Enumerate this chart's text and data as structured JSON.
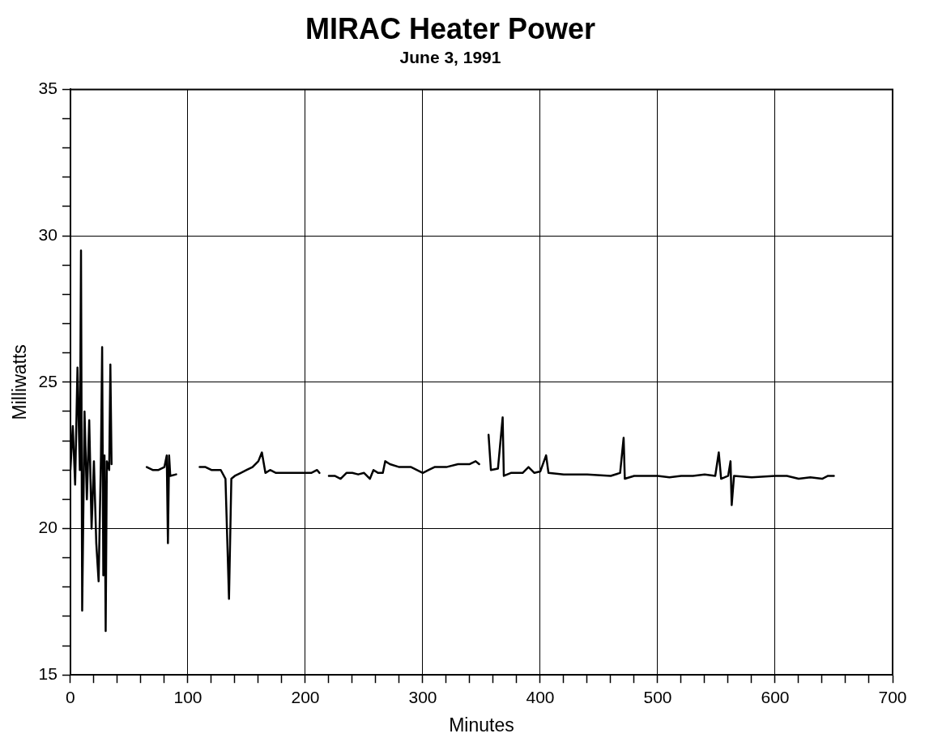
{
  "chart_data": {
    "type": "line",
    "title": "MIRAC Heater Power",
    "subtitle": "June 3, 1991",
    "xlabel": "Minutes",
    "ylabel": "Milliwatts",
    "xlim": [
      0,
      700
    ],
    "ylim": [
      15,
      35
    ],
    "xticks": [
      0,
      {
        "value": 20,
        "label": null
      },
      {
        "value": 40,
        "label": null
      },
      {
        "value": 60,
        "label": null
      },
      {
        "value": 80,
        "label": null
      },
      100,
      {
        "value": 120,
        "label": null
      },
      {
        "value": 140,
        "label": null
      },
      {
        "value": 160,
        "label": null
      },
      {
        "value": 180,
        "label": null
      },
      200,
      {
        "value": 220,
        "label": null
      },
      {
        "value": 240,
        "label": null
      },
      {
        "value": 260,
        "label": null
      },
      {
        "value": 280,
        "label": null
      },
      300,
      {
        "value": 320,
        "label": null
      },
      {
        "value": 340,
        "label": null
      },
      {
        "value": 360,
        "label": null
      },
      {
        "value": 380,
        "label": null
      },
      400,
      {
        "value": 420,
        "label": null
      },
      {
        "value": 440,
        "label": null
      },
      {
        "value": 460,
        "label": null
      },
      {
        "value": 480,
        "label": null
      },
      500,
      {
        "value": 520,
        "label": null
      },
      {
        "value": 540,
        "label": null
      },
      {
        "value": 560,
        "label": null
      },
      {
        "value": 580,
        "label": null
      },
      600,
      {
        "value": 620,
        "label": null
      },
      {
        "value": 640,
        "label": null
      },
      {
        "value": 660,
        "label": null
      },
      {
        "value": 680,
        "label": null
      },
      700
    ],
    "yticks": [
      15,
      {
        "value": 16,
        "label": null
      },
      {
        "value": 17,
        "label": null
      },
      {
        "value": 18,
        "label": null
      },
      {
        "value": 19,
        "label": null
      },
      20,
      {
        "value": 21,
        "label": null
      },
      {
        "value": 22,
        "label": null
      },
      {
        "value": 23,
        "label": null
      },
      {
        "value": 24,
        "label": null
      },
      25,
      {
        "value": 26,
        "label": null
      },
      {
        "value": 27,
        "label": null
      },
      {
        "value": 28,
        "label": null
      },
      {
        "value": 29,
        "label": null
      },
      30,
      {
        "value": 31,
        "label": null
      },
      {
        "value": 32,
        "label": null
      },
      {
        "value": 33,
        "label": null
      },
      {
        "value": 34,
        "label": null
      },
      35
    ],
    "grid": true,
    "legend": false,
    "marker": "none",
    "line_style": "solid",
    "x": [
      0,
      2,
      4,
      6,
      8,
      9,
      10,
      12,
      14,
      16,
      18,
      20,
      22,
      24,
      26,
      27,
      28,
      29,
      30,
      31,
      33,
      34,
      35,
      50,
      65,
      70,
      75,
      80,
      82,
      83,
      84,
      85,
      90,
      100,
      110,
      115,
      120,
      128,
      132,
      135,
      137,
      140,
      145,
      150,
      155,
      160,
      163,
      166,
      170,
      175,
      180,
      190,
      200,
      205,
      210,
      212,
      216,
      220,
      225,
      230,
      235,
      240,
      245,
      250,
      255,
      258,
      262,
      266,
      268,
      272,
      280,
      290,
      300,
      305,
      310,
      320,
      330,
      340,
      345,
      348,
      352,
      356,
      358,
      364,
      368,
      369,
      375,
      385,
      390,
      395,
      400,
      405,
      407,
      420,
      440,
      460,
      468,
      471,
      472,
      480,
      490,
      500,
      510,
      520,
      530,
      540,
      549,
      552,
      554,
      560,
      562,
      563,
      565,
      580,
      600,
      610,
      620,
      630,
      640,
      645,
      650
    ],
    "series": [
      {
        "color": "#000000",
        "values": [
          22.0,
          23.5,
          21.5,
          25.5,
          22,
          29.5,
          17.2,
          24,
          21,
          23.7,
          20,
          22.3,
          19.5,
          18.2,
          22.5,
          26.2,
          18.4,
          22.5,
          16.5,
          22.3,
          22,
          25.6,
          22.2,
          null,
          22.1,
          22.0,
          22.0,
          22.1,
          22.5,
          19.5,
          22.5,
          21.8,
          21.85,
          null,
          22.1,
          22.1,
          22.0,
          22.0,
          21.7,
          17.6,
          21.7,
          21.8,
          21.9,
          22.0,
          22.1,
          22.3,
          22.6,
          21.9,
          22.0,
          21.9,
          21.9,
          21.9,
          21.9,
          21.9,
          22.0,
          21.9,
          null,
          21.8,
          21.8,
          21.7,
          21.9,
          21.9,
          21.85,
          21.9,
          21.7,
          22.0,
          21.9,
          21.9,
          22.3,
          22.2,
          22.1,
          22.1,
          21.9,
          22.0,
          22.1,
          22.1,
          22.2,
          22.2,
          22.3,
          22.2,
          null,
          23.2,
          22.0,
          22.05,
          23.8,
          21.8,
          21.9,
          21.9,
          22.1,
          21.9,
          21.95,
          22.5,
          21.9,
          21.85,
          21.85,
          21.8,
          21.9,
          23.1,
          21.7,
          21.8,
          21.8,
          21.8,
          21.75,
          21.8,
          21.8,
          21.85,
          21.8,
          22.6,
          21.7,
          21.8,
          22.3,
          20.8,
          21.8,
          21.75,
          21.8,
          21.8,
          21.7,
          21.75,
          21.7,
          21.8,
          21.8
        ]
      }
    ]
  }
}
